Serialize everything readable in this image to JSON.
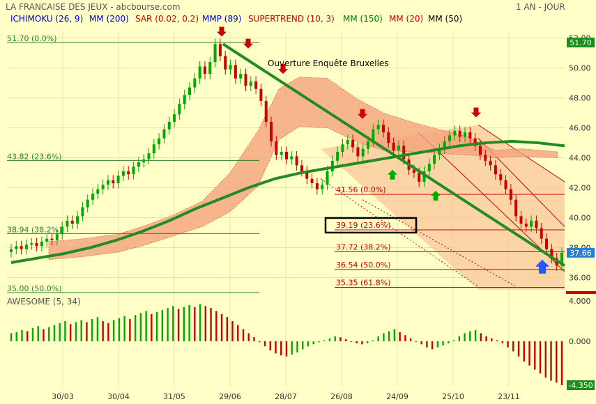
{
  "header": {
    "title": "LA FRANCAISE DES JEUX - abcbourse.com",
    "period": "1 AN - JOUR",
    "indicators": [
      {
        "label": "ICHIMOKU (26, 9)",
        "color": "#0000cc"
      },
      {
        "label": "MM (200)",
        "color": "#0000cc"
      },
      {
        "label": "SAR (0.02, 0.2)",
        "color": "#cc0000"
      },
      {
        "label": "MMP (89)",
        "color": "#0000cc"
      },
      {
        "label": "SUPERTREND (10, 3)",
        "color": "#cc0000"
      },
      {
        "label": "MM (150)",
        "color": "#007700"
      },
      {
        "label": "MM (20)",
        "color": "#cc0000"
      },
      {
        "label": "MM (50)",
        "color": "#000000"
      }
    ]
  },
  "colors": {
    "background": "#ffffc8",
    "grid": "#e6e0b0",
    "up": "#00aa00",
    "down": "#cc0000",
    "trend": "#228b22",
    "cloud": "#f4a27a",
    "fib_line": "#cc0000",
    "fib_green": "#2e7d32",
    "channel_fill": "#f9c79a",
    "blue_arrow": "#1e5bff"
  },
  "annotation": "Ouverture Enquête Bruxelles",
  "chart_data": {
    "type": "candlestick",
    "price_panel": {
      "ylim": [
        35.0,
        52.4
      ],
      "ticks": [
        "52.00",
        "50.00",
        "48.00",
        "46.00",
        "44.00",
        "42.00",
        "40.00",
        "38.00",
        "36.00"
      ],
      "last_price_tag": "51.70",
      "current_price_tag": "37.66",
      "x_labels": [
        "30/03",
        "30/04",
        "31/05",
        "29/06",
        "28/07",
        "26/08",
        "24/09",
        "25/10",
        "23/11"
      ],
      "fib_left": [
        {
          "label": "51.70  (0.0%)",
          "value": 51.7
        },
        {
          "label": "43.82  (23.6%)",
          "value": 43.82
        },
        {
          "label": "38.94  (38.2%)",
          "value": 38.94
        },
        {
          "label": "35.00  (50.0%)",
          "value": 35.0
        }
      ],
      "fib_right": [
        {
          "label": "41.56  (0.0%)",
          "value": 41.56
        },
        {
          "label": "39.19  (23.6%)",
          "value": 39.19,
          "boxed": true
        },
        {
          "label": "37.72  (38.2%)",
          "value": 37.72
        },
        {
          "label": "36.54  (50.0%)",
          "value": 36.54
        },
        {
          "label": "35.35  (61.8%)",
          "value": 35.35
        }
      ],
      "mm_levels": [
        37.0,
        37.3,
        37.6,
        38.0,
        38.5,
        39.1,
        39.8,
        40.6,
        41.3,
        42.0,
        42.6,
        43.0,
        43.3,
        43.6,
        43.9,
        44.2,
        44.5,
        44.8,
        45.0,
        45.1,
        45.0,
        44.8
      ],
      "closes": [
        37.9,
        38.1,
        37.9,
        38.2,
        38.3,
        38.1,
        38.4,
        38.6,
        38.5,
        38.9,
        39.4,
        39.8,
        39.6,
        40.1,
        40.7,
        41.2,
        41.6,
        41.9,
        42.2,
        42.5,
        42.3,
        42.8,
        43.1,
        42.9,
        43.4,
        43.7,
        43.9,
        44.3,
        44.9,
        45.3,
        45.9,
        46.4,
        46.9,
        47.6,
        48.2,
        48.7,
        49.3,
        50.1,
        49.6,
        50.4,
        51.6,
        50.8,
        49.9,
        50.2,
        49.3,
        49.6,
        48.8,
        49.1,
        48.6,
        47.8,
        46.4,
        45.1,
        44.2,
        44.4,
        43.9,
        44.1,
        43.5,
        43.1,
        42.6,
        42.3,
        41.9,
        42.2,
        43.1,
        43.8,
        44.4,
        44.9,
        45.2,
        44.7,
        44.1,
        44.6,
        45.1,
        45.9,
        46.2,
        45.7,
        45.0,
        44.5,
        44.8,
        43.9,
        43.2,
        43.0,
        42.4,
        43.1,
        43.6,
        44.2,
        44.6,
        45.1,
        45.5,
        45.8,
        45.4,
        45.7,
        45.3,
        44.8,
        44.2,
        43.8,
        43.5,
        42.9,
        42.5,
        41.9,
        41.2,
        40.1,
        39.6,
        39.4,
        39.8,
        39.3,
        38.6,
        37.9,
        37.3,
        36.8,
        37.66
      ]
    },
    "awesome": {
      "label": "AWESOME (5, 34)",
      "ylim": [
        -4.35,
        4.0
      ],
      "ticks": [
        "4.000",
        "0.000"
      ],
      "last_value_tag": "-4.350",
      "values": [
        0.8,
        0.9,
        1.1,
        1.0,
        1.3,
        1.5,
        1.2,
        1.4,
        1.6,
        1.8,
        2.0,
        1.7,
        1.9,
        2.1,
        1.9,
        2.2,
        2.4,
        2.0,
        1.8,
        2.1,
        2.3,
        2.5,
        2.2,
        2.6,
        2.8,
        3.0,
        2.7,
        2.9,
        3.1,
        3.3,
        3.5,
        3.2,
        3.4,
        3.6,
        3.4,
        3.7,
        3.5,
        3.3,
        3.0,
        2.7,
        2.4,
        2.0,
        1.6,
        1.2,
        0.8,
        0.4,
        -0.1,
        -0.5,
        -0.9,
        -1.2,
        -1.4,
        -1.5,
        -1.3,
        -1.1,
        -0.8,
        -0.5,
        -0.3,
        -0.1,
        0.1,
        0.3,
        0.5,
        0.4,
        0.2,
        0.0,
        -0.2,
        -0.3,
        -0.2,
        0.1,
        0.5,
        0.8,
        1.0,
        1.2,
        0.9,
        0.6,
        0.3,
        0.0,
        -0.3,
        -0.6,
        -0.8,
        -0.6,
        -0.4,
        -0.2,
        0.1,
        0.5,
        0.8,
        1.0,
        1.1,
        0.8,
        0.5,
        0.3,
        0.1,
        -0.2,
        -0.6,
        -1.0,
        -1.5,
        -2.0,
        -2.4,
        -2.8,
        -3.2,
        -3.6,
        -3.9,
        -4.1,
        -4.35
      ]
    }
  }
}
